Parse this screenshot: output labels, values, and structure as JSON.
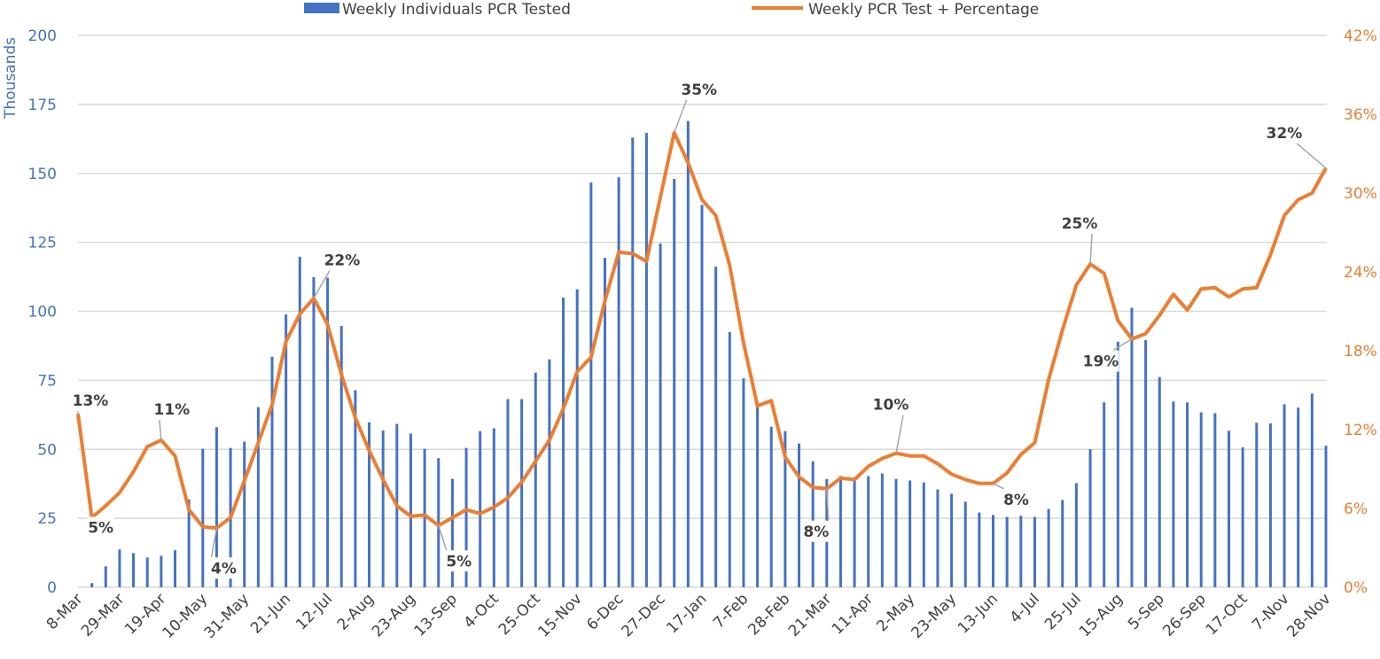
{
  "chart_data": {
    "type": "bar+line",
    "legend_placement": "top",
    "grid": true,
    "ylabel_left": "Thousands",
    "ylim_left": [
      0,
      200
    ],
    "yticks_left": [
      "0",
      "25",
      "50",
      "75",
      "100",
      "125",
      "150",
      "175",
      "200"
    ],
    "ylim_right": [
      0,
      42
    ],
    "yticks_right": [
      "0%",
      "6%",
      "12%",
      "18%",
      "24%",
      "30%",
      "36%",
      "42%"
    ],
    "xtick_labels": [
      "8-Mar",
      "29-Mar",
      "19-Apr",
      "10-May",
      "31-May",
      "21-Jun",
      "12-Jul",
      "2-Aug",
      "23-Aug",
      "13-Sep",
      "4-Oct",
      "25-Oct",
      "15-Nov",
      "6-Dec",
      "27-Dec",
      "17-Jan",
      "7-Feb",
      "28-Feb",
      "21-Mar",
      "11-Apr",
      "2-May",
      "23-May",
      "13-Jun",
      "4-Jul",
      "25-Jul",
      "15-Aug",
      "5-Sep",
      "26-Sep",
      "17-Oct",
      "7-Nov",
      "28-Nov"
    ],
    "categories": [
      "8-Mar",
      "15-Mar",
      "22-Mar",
      "29-Mar",
      "5-Apr",
      "12-Apr",
      "19-Apr",
      "26-Apr",
      "3-May",
      "10-May",
      "17-May",
      "24-May",
      "31-May",
      "7-Jun",
      "14-Jun",
      "21-Jun",
      "28-Jun",
      "5-Jul",
      "12-Jul",
      "19-Jul",
      "26-Jul",
      "2-Aug",
      "9-Aug",
      "16-Aug",
      "23-Aug",
      "30-Aug",
      "6-Sep",
      "13-Sep",
      "20-Sep",
      "27-Sep",
      "4-Oct",
      "11-Oct",
      "18-Oct",
      "25-Oct",
      "1-Nov",
      "8-Nov",
      "15-Nov",
      "22-Nov",
      "29-Nov",
      "6-Dec",
      "13-Dec",
      "20-Dec",
      "27-Dec",
      "3-Jan",
      "10-Jan",
      "17-Jan",
      "24-Jan",
      "31-Jan",
      "7-Feb",
      "14-Feb",
      "21-Feb",
      "28-Feb",
      "7-Mar",
      "14-Mar",
      "21-Mar",
      "28-Mar",
      "4-Apr",
      "11-Apr",
      "18-Apr",
      "25-Apr",
      "2-May",
      "9-May",
      "16-May",
      "23-May",
      "30-May",
      "6-Jun",
      "13-Jun",
      "20-Jun",
      "27-Jun",
      "4-Jul",
      "11-Jul",
      "18-Jul",
      "25-Jul",
      "1-Aug",
      "8-Aug",
      "15-Aug",
      "22-Aug",
      "29-Aug",
      "5-Sep",
      "12-Sep",
      "19-Sep",
      "26-Sep",
      "3-Oct",
      "10-Oct",
      "17-Oct",
      "24-Oct",
      "31-Oct",
      "7-Nov",
      "14-Nov",
      "21-Nov",
      "28-Nov"
    ],
    "series": [
      {
        "name": "Weekly Individuals PCR Tested",
        "type": "bar",
        "axis": "left",
        "color": "#4472C4",
        "values": [
          0,
          1.5,
          7.6,
          13.7,
          12.4,
          10.8,
          11.4,
          13.4,
          31.8,
          50.2,
          58,
          50.5,
          52.8,
          65.3,
          83.5,
          98.9,
          119.8,
          112.4,
          112.2,
          94.7,
          71.4,
          59.8,
          56.8,
          59.2,
          55.7,
          50.2,
          46.8,
          39.3,
          50.5,
          56.6,
          57.6,
          68.2,
          68.2,
          77.8,
          82.6,
          105,
          108,
          146.7,
          119.4,
          148.6,
          163,
          164.7,
          124.6,
          148,
          169,
          138.6,
          116.2,
          92.5,
          75.7,
          65.3,
          58.2,
          56.6,
          52.1,
          45.7,
          39.2,
          40.3,
          39,
          40.3,
          41.2,
          39.3,
          38.7,
          38,
          35.5,
          33.9,
          31,
          27.1,
          26.2,
          25.5,
          25.9,
          25.5,
          28.4,
          31.6,
          37.7,
          50,
          67,
          89,
          101.3,
          89.6,
          76.2,
          67.3,
          67,
          63.4,
          63.1,
          56.7,
          50.7,
          59.6,
          59.4,
          66.3,
          65.1,
          70.2,
          51.3
        ]
      },
      {
        "name": "Weekly PCR Test + Percentage",
        "type": "line",
        "axis": "right",
        "color": "#ED7D31",
        "values": [
          13.2,
          5.3,
          6.2,
          7.2,
          8.8,
          10.7,
          11.2,
          10.0,
          5.9,
          4.6,
          4.5,
          5.3,
          8.1,
          11.0,
          13.9,
          18.7,
          20.8,
          22.0,
          20.0,
          16.2,
          12.9,
          10.4,
          8.2,
          6.2,
          5.4,
          5.5,
          4.7,
          5.3,
          5.9,
          5.6,
          6.1,
          6.8,
          8.0,
          9.6,
          11.2,
          13.6,
          16.4,
          17.5,
          21.8,
          25.5,
          25.4,
          24.8,
          29.7,
          34.6,
          32.3,
          29.5,
          28.3,
          24.5,
          18.6,
          13.8,
          14.2,
          9.9,
          8.4,
          7.6,
          7.5,
          8.3,
          8.2,
          9.2,
          9.8,
          10.2,
          10.0,
          10.0,
          9.4,
          8.6,
          8.2,
          7.9,
          7.9,
          8.7,
          10.1,
          11.0,
          15.8,
          19.6,
          23.0,
          24.6,
          23.9,
          20.3,
          18.9,
          19.3,
          20.7,
          22.3,
          21.1,
          22.7,
          22.8,
          22.1,
          22.7,
          22.8,
          25.3,
          28.3,
          29.5,
          30.0,
          31.9
        ]
      }
    ],
    "data_labels": [
      {
        "index": 0,
        "text": "13%"
      },
      {
        "index": 1,
        "text": "5%"
      },
      {
        "index": 6,
        "text": "11%"
      },
      {
        "index": 10,
        "text": "4%"
      },
      {
        "index": 17,
        "text": "22%"
      },
      {
        "index": 26,
        "text": "5%"
      },
      {
        "index": 43,
        "text": "35%"
      },
      {
        "index": 54,
        "text": "8%"
      },
      {
        "index": 59,
        "text": "10%"
      },
      {
        "index": 66,
        "text": "8%"
      },
      {
        "index": 73,
        "text": "25%"
      },
      {
        "index": 76,
        "text": "19%"
      },
      {
        "index": 90,
        "text": "32%"
      }
    ],
    "colors": {
      "left_axis": "#4472C4",
      "right_axis": "#ED7D31",
      "grid": "#D9D9D9",
      "label": "#404040",
      "leader": "#A6A6A6"
    }
  }
}
